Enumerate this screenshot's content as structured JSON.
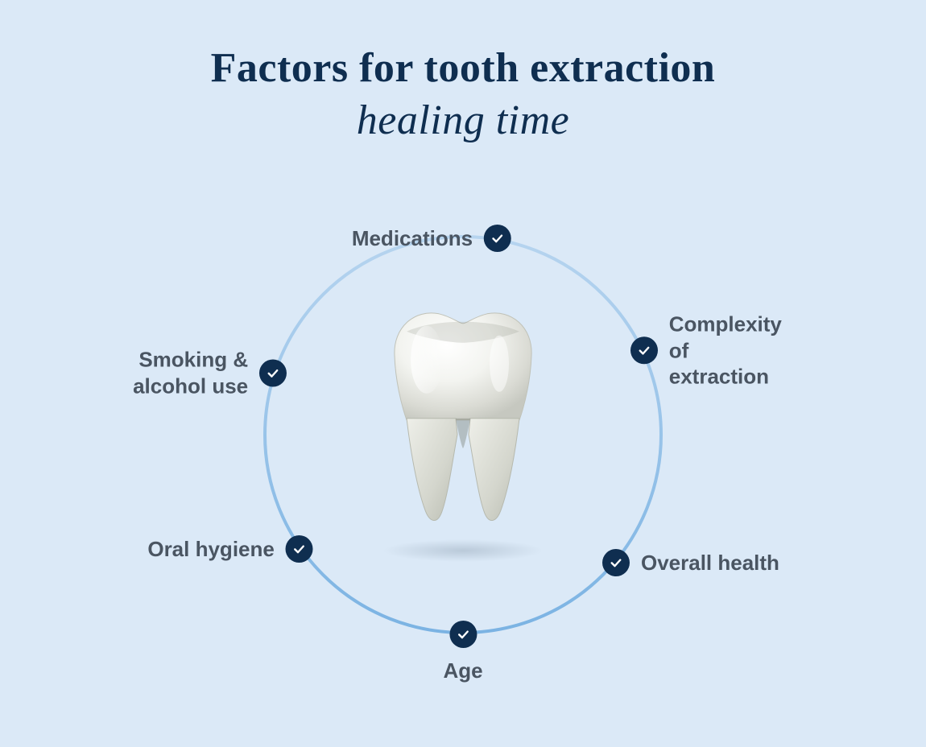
{
  "title": {
    "line1": "Factors for tooth extraction",
    "line2": "healing time",
    "color": "#0f2e50",
    "fontsize": 52
  },
  "background_color": "#dbe9f7",
  "ring": {
    "diameter": 500,
    "stroke_width": 4,
    "gradient_start": "#b6d4ef",
    "gradient_end": "#7bb3e3"
  },
  "check_style": {
    "fill": "#0f2e50",
    "tick_color": "#ffffff",
    "diameter": 34
  },
  "label_style": {
    "color": "#4a5562",
    "fontsize": 26,
    "weight": 600
  },
  "factors": [
    {
      "id": "medications",
      "label": "Medications",
      "angle_deg": -80,
      "side": "left"
    },
    {
      "id": "complexity",
      "label": "Complexity of\nextraction",
      "angle_deg": -25,
      "side": "right"
    },
    {
      "id": "overall-health",
      "label": "Overall health",
      "angle_deg": 40,
      "side": "right"
    },
    {
      "id": "age",
      "label": "Age",
      "angle_deg": 90,
      "side": "center"
    },
    {
      "id": "oral-hygiene",
      "label": "Oral hygiene",
      "angle_deg": 145,
      "side": "left"
    },
    {
      "id": "smoking-alcohol",
      "label": "Smoking &\nalcohol use",
      "angle_deg": 198,
      "side": "left"
    }
  ]
}
